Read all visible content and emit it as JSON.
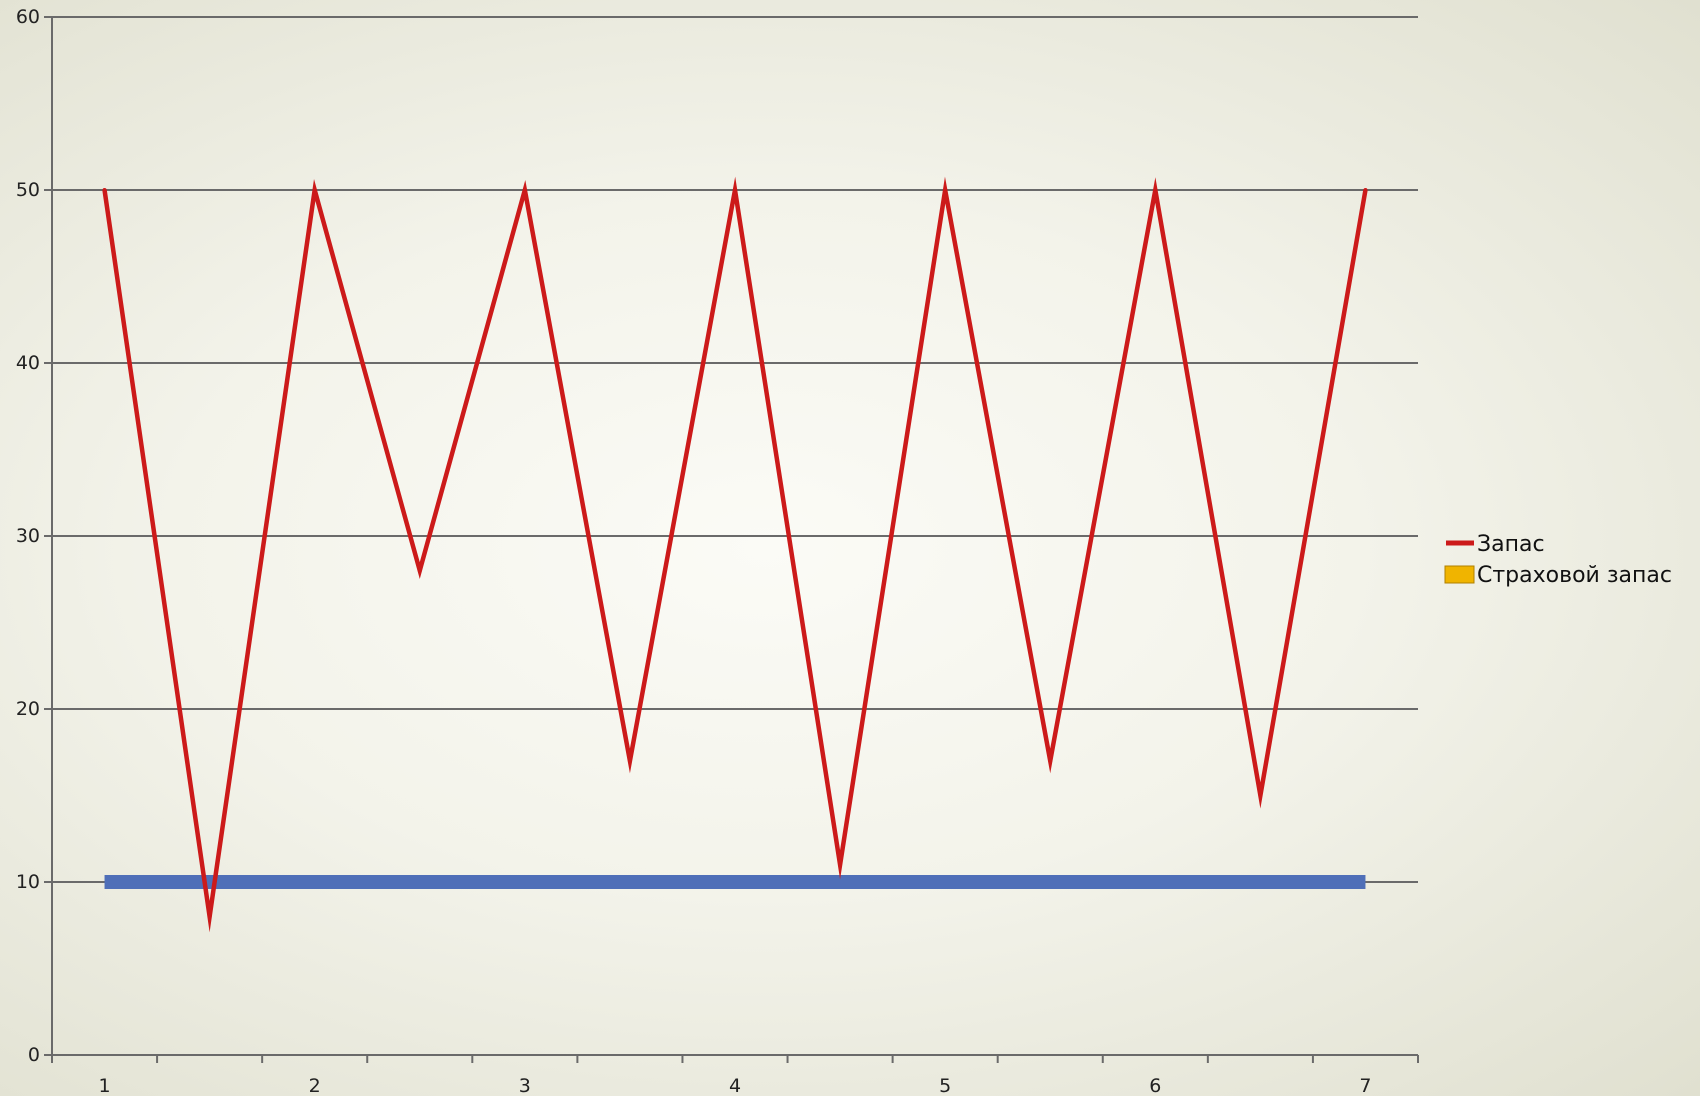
{
  "chart_data": {
    "type": "line",
    "x": [
      1,
      1.5,
      2,
      2.5,
      3,
      3.5,
      4,
      4.5,
      5,
      5.5,
      6,
      6.5,
      7
    ],
    "xticks": [
      "1",
      "2",
      "3",
      "4",
      "5",
      "6",
      "7"
    ],
    "yticks": [
      "0",
      "10",
      "20",
      "30",
      "40",
      "50",
      "60"
    ],
    "xlim": [
      0.75,
      7.25
    ],
    "ylim": [
      0,
      60
    ],
    "grid": true,
    "legend_position": "right",
    "series": [
      {
        "name": "Запас",
        "color": "#cc1a1a",
        "values": [
          50,
          8,
          50,
          28,
          50,
          17,
          50,
          11,
          50,
          17,
          50,
          15,
          50
        ]
      },
      {
        "name": "Страховой запас",
        "color": "#4f6fb8",
        "legend_color": "#f0b400",
        "values": [
          10,
          10,
          10,
          10,
          10,
          10,
          10,
          10,
          10,
          10,
          10,
          10,
          10
        ]
      }
    ]
  }
}
